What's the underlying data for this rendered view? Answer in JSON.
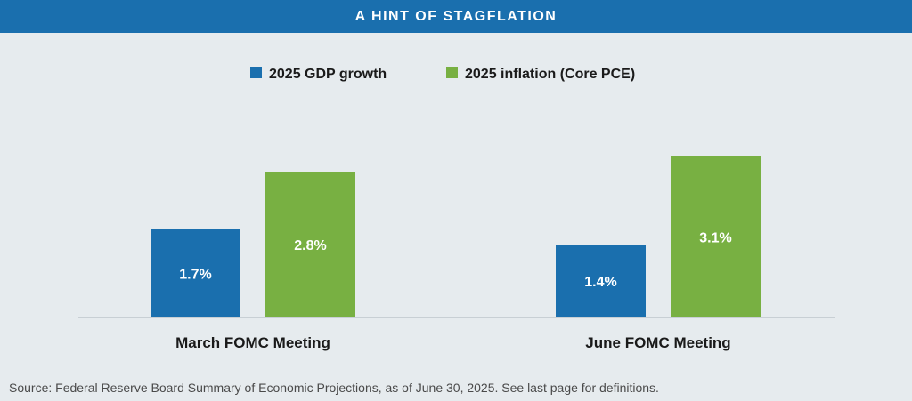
{
  "banner": {
    "title": "A HINT OF STAGFLATION"
  },
  "colors": {
    "gdp": "#1a6fae",
    "inflation": "#78b042",
    "axis": "#a9b3bb",
    "label_text": "#ffffff",
    "category_text": "#1a1a1a"
  },
  "chart_data": {
    "type": "bar",
    "title": "A HINT OF STAGFLATION",
    "categories": [
      "March FOMC Meeting",
      "June FOMC Meeting"
    ],
    "series": [
      {
        "name": "2025 GDP growth",
        "values": [
          1.7,
          1.4
        ],
        "labels": [
          "1.7%",
          "1.4%"
        ]
      },
      {
        "name": "2025 inflation (Core PCE)",
        "values": [
          2.8,
          3.1
        ],
        "labels": [
          "2.8%",
          "3.1%"
        ]
      }
    ],
    "ylim": [
      0,
      3.3
    ],
    "xlabel": "",
    "ylabel": "",
    "grid": false,
    "legend": "top-center"
  },
  "footer": {
    "source": "Source:  Federal Reserve Board Summary of Economic Projections, as of June 30, 2025. See last page for definitions."
  }
}
